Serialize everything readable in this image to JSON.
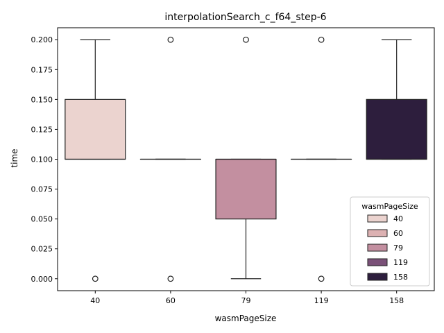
{
  "chart_data": {
    "type": "box",
    "title": "interpolationSearch_c_f64_step-6",
    "xlabel": "wasmPageSize",
    "ylabel": "time",
    "ylim": [
      -0.01,
      0.21
    ],
    "yticks": [
      0.0,
      0.025,
      0.05,
      0.075,
      0.1,
      0.125,
      0.15,
      0.175,
      0.2
    ],
    "ytick_labels": [
      "0.000",
      "0.025",
      "0.050",
      "0.075",
      "0.100",
      "0.125",
      "0.150",
      "0.175",
      "0.200"
    ],
    "categories": [
      "40",
      "60",
      "79",
      "119",
      "158"
    ],
    "grid": false,
    "legend": {
      "title": "wasmPageSize",
      "placement": "lower-right",
      "entries": [
        "40",
        "60",
        "79",
        "119",
        "158"
      ]
    },
    "series": [
      {
        "category": "40",
        "color": "#ebd3cf",
        "q1": 0.1,
        "median": 0.1,
        "q3": 0.15,
        "whisker_low": 0.1,
        "whisker_high": 0.2,
        "outliers": [
          0.0
        ]
      },
      {
        "category": "60",
        "color": "#dcb1b2",
        "q1": 0.1,
        "median": 0.1,
        "q3": 0.1,
        "whisker_low": 0.1,
        "whisker_high": 0.1,
        "outliers": [
          0.2,
          0.0
        ]
      },
      {
        "category": "79",
        "color": "#c38fa0",
        "q1": 0.05,
        "median": 0.1,
        "q3": 0.1,
        "whisker_low": 0.0,
        "whisker_high": 0.1,
        "outliers": [
          0.2
        ]
      },
      {
        "category": "119",
        "color": "#7a5178",
        "q1": 0.1,
        "median": 0.1,
        "q3": 0.1,
        "whisker_low": 0.1,
        "whisker_high": 0.1,
        "outliers": [
          0.2,
          0.0
        ]
      },
      {
        "category": "158",
        "color": "#2d1e3d",
        "q1": 0.1,
        "median": 0.1,
        "q3": 0.15,
        "whisker_low": 0.1,
        "whisker_high": 0.2,
        "outliers": []
      }
    ]
  }
}
